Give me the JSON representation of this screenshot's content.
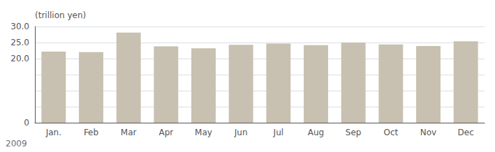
{
  "chart_data": {
    "type": "bar",
    "ylabel": "(trillion yen)",
    "xlabel": "2009",
    "categories": [
      "Jan.",
      "Feb",
      "Mar",
      "Apr",
      "May",
      "Jun",
      "Jul",
      "Aug",
      "Sep",
      "Oct",
      "Nov",
      "Dec"
    ],
    "values": [
      22.2,
      22.0,
      28.1,
      23.8,
      23.2,
      24.3,
      24.7,
      24.2,
      25.0,
      24.4,
      23.9,
      25.4
    ],
    "color": "#c8c0b0",
    "ylim": [
      0,
      30.0
    ],
    "yticks": [
      0,
      {
        "value": 5.0,
        "label": ""
      },
      {
        "value": 10.0,
        "label": ""
      },
      {
        "value": 15.0,
        "label": ""
      },
      {
        "value": 20.0,
        "label": "20.0"
      },
      {
        "value": 25.0,
        "label": "25.0"
      },
      {
        "value": 30.0,
        "label": "30.0"
      }
    ],
    "grid": true
  }
}
